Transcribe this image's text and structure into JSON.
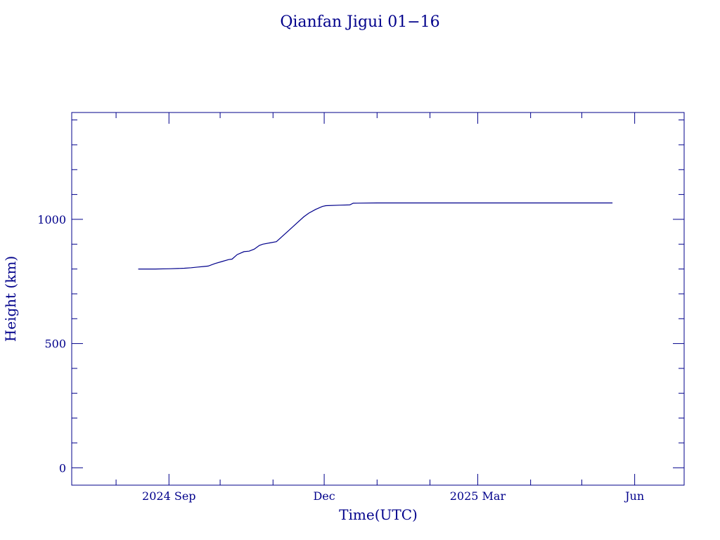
{
  "chart_data": {
    "type": "line",
    "title": "Qianfan Jigui 01−16",
    "xlabel": "Time(UTC)",
    "ylabel": "Height (km)",
    "x_type": "date",
    "xlim": [
      "2024-07-06",
      "2025-06-30"
    ],
    "ylim": [
      -70,
      1430
    ],
    "y_ticks": [
      {
        "value": 0,
        "label": "0"
      },
      {
        "value": 500,
        "label": "500"
      },
      {
        "value": 1000,
        "label": "1000"
      }
    ],
    "y_minor_step": 100,
    "x_ticks": [
      {
        "date": "2024-09-01",
        "label": "2024 Sep"
      },
      {
        "date": "2024-12-01",
        "label": "Dec"
      },
      {
        "date": "2025-03-01",
        "label": "2025 Mar"
      },
      {
        "date": "2025-06-01",
        "label": "Jun"
      }
    ],
    "x_minor_ticks": [
      "2024-08-01",
      "2024-10-01",
      "2024-11-01",
      "2025-01-01",
      "2025-02-01",
      "2025-04-01",
      "2025-05-01"
    ],
    "grid": false,
    "series": [
      {
        "x": [
          "2024-08-14",
          "2024-08-24",
          "2024-09-02",
          "2024-09-10",
          "2024-09-14",
          "2024-09-18",
          "2024-09-21",
          "2024-09-24",
          "2024-09-28",
          "2024-10-02",
          "2024-10-06",
          "2024-10-08",
          "2024-10-11",
          "2024-10-15",
          "2024-10-18",
          "2024-10-21",
          "2024-10-24",
          "2024-10-26",
          "2024-10-30",
          "2024-11-03",
          "2024-11-07",
          "2024-11-11",
          "2024-11-15",
          "2024-11-19",
          "2024-11-22",
          "2024-11-26",
          "2024-11-30",
          "2024-12-02",
          "2024-12-10",
          "2024-12-16",
          "2024-12-18",
          "2025-01-01",
          "2025-02-01",
          "2025-03-01",
          "2025-04-01",
          "2025-05-19"
        ],
        "y": [
          800,
          800,
          801,
          803,
          805,
          808,
          810,
          812,
          822,
          830,
          838,
          840,
          858,
          870,
          872,
          880,
          895,
          900,
          905,
          910,
          935,
          960,
          985,
          1010,
          1025,
          1040,
          1052,
          1055,
          1057,
          1058,
          1065,
          1066,
          1066,
          1066,
          1066,
          1066
        ]
      }
    ]
  }
}
